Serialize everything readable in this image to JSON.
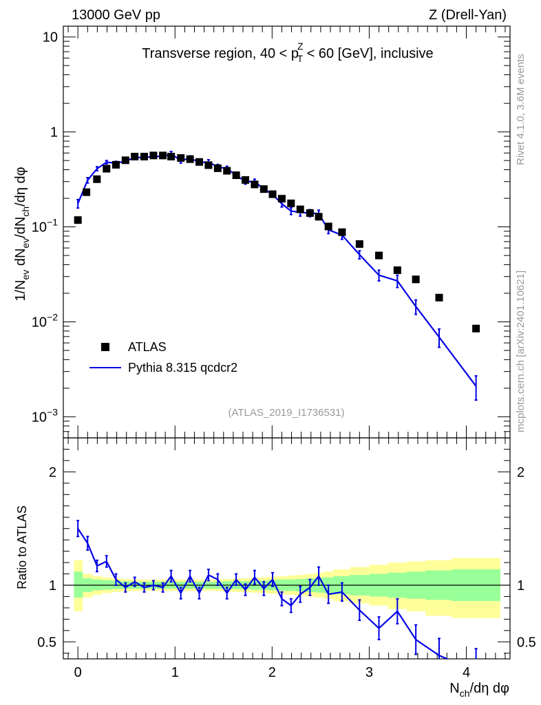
{
  "header": {
    "left": "13000 GeV pp",
    "right": "Z (Drell-Yan)"
  },
  "side": {
    "rivet": "Rivet 4.1.0,  3.6M events",
    "mcplots": "mcplots.cern.ch [arXiv:2401.10621]"
  },
  "chart_data": [
    {
      "type": "scatter",
      "panel": "main",
      "title": "Transverse region, 40 < p_T^Z < 60 [GeV], inclusive",
      "title_parts": {
        "pre": "Transverse region, 40 < p",
        "sup": "Z",
        "sub": "T",
        "post": " < 60 [GeV], inclusive"
      },
      "ylabel": "1/N_ev dN_ev/dN_ch/dη dφ",
      "ylabel_parts": {
        "a": "1/N",
        "a_sub": "ev",
        "b": " dN",
        "b_sub": "ev",
        "c": "/dN",
        "c_sub": "ch",
        "d": "/dη dφ"
      },
      "yscale": "log",
      "ylim": [
        0.0006,
        13
      ],
      "xlim": [
        -0.15,
        4.45
      ],
      "y_ticks": [
        {
          "v": 10,
          "label": "10",
          "sup": ""
        },
        {
          "v": 1,
          "label": "1",
          "sup": ""
        },
        {
          "v": 0.1,
          "label": "10",
          "sup": "−1"
        },
        {
          "v": 0.01,
          "label": "10",
          "sup": "−2"
        },
        {
          "v": 0.001,
          "label": "10",
          "sup": "−3"
        }
      ],
      "source_label": "(ATLAS_2019_I1736531)",
      "legend": [
        {
          "name": "ATLAS",
          "marker": "square",
          "color": "#000000"
        },
        {
          "name": "Pythia 8.315 qcdcr2",
          "marker": "line",
          "color": "#0000e6"
        }
      ],
      "series": [
        {
          "name": "ATLAS",
          "color": "#000000",
          "x": [
            0.0,
            0.088,
            0.196,
            0.295,
            0.392,
            0.49,
            0.585,
            0.683,
            0.778,
            0.875,
            0.96,
            1.06,
            1.155,
            1.25,
            1.345,
            1.44,
            1.535,
            1.63,
            1.725,
            1.82,
            1.915,
            2.005,
            2.1,
            2.195,
            2.29,
            2.39,
            2.48,
            2.58,
            2.72,
            2.9,
            3.1,
            3.29,
            3.48,
            3.72,
            4.1
          ],
          "y": [
            0.118,
            0.232,
            0.318,
            0.41,
            0.451,
            0.503,
            0.55,
            0.55,
            0.565,
            0.565,
            0.55,
            0.532,
            0.517,
            0.483,
            0.447,
            0.415,
            0.39,
            0.35,
            0.312,
            0.28,
            0.25,
            0.221,
            0.198,
            0.177,
            0.153,
            0.14,
            0.128,
            0.101,
            0.088,
            0.066,
            0.05,
            0.035,
            0.028,
            0.018,
            0.0085
          ]
        },
        {
          "name": "Pythia 8.315 qcdcr2",
          "color": "#0000e6",
          "x": [
            0.0,
            0.1,
            0.197,
            0.295,
            0.392,
            0.49,
            0.585,
            0.683,
            0.778,
            0.875,
            0.96,
            1.06,
            1.155,
            1.25,
            1.345,
            1.44,
            1.535,
            1.63,
            1.725,
            1.82,
            1.915,
            2.005,
            2.1,
            2.195,
            2.29,
            2.39,
            2.48,
            2.58,
            2.72,
            2.9,
            3.1,
            3.29,
            3.48,
            3.72,
            4.1
          ],
          "y": [
            0.176,
            0.31,
            0.41,
            0.48,
            0.47,
            0.49,
            0.54,
            0.535,
            0.555,
            0.55,
            0.588,
            0.5,
            0.53,
            0.48,
            0.48,
            0.43,
            0.41,
            0.35,
            0.3,
            0.3,
            0.25,
            0.22,
            0.175,
            0.147,
            0.142,
            0.14,
            0.138,
            0.093,
            0.082,
            0.051,
            0.031,
            0.027,
            0.0145,
            0.0069,
            0.0021
          ],
          "yerr": [
            0.018,
            0.02,
            0.02,
            0.02,
            0.02,
            0.02,
            0.02,
            0.02,
            0.025,
            0.025,
            0.035,
            0.03,
            0.03,
            0.03,
            0.03,
            0.025,
            0.025,
            0.02,
            0.018,
            0.018,
            0.015,
            0.015,
            0.013,
            0.012,
            0.012,
            0.012,
            0.012,
            0.008,
            0.008,
            0.005,
            0.004,
            0.004,
            0.0025,
            0.0015,
            0.0006
          ]
        }
      ]
    },
    {
      "type": "line",
      "panel": "ratio",
      "ylabel": "Ratio to ATLAS",
      "xlabel": "N_ch/dη dφ",
      "xlabel_parts": {
        "a": "N",
        "a_sub": "ch",
        "b": "/dη dφ"
      },
      "ylim": [
        0.35,
        2.3
      ],
      "xlim": [
        -0.15,
        4.45
      ],
      "y_ticks": [
        0.5,
        1,
        2
      ],
      "y_tick_labels": [
        "0.5",
        "1",
        "2"
      ],
      "x_ticks": [
        0,
        1,
        2,
        3,
        4
      ],
      "x_tick_labels": [
        "0",
        "1",
        "2",
        "3",
        "4"
      ],
      "bands": {
        "edges": [
          -0.04,
          0.05,
          0.15,
          0.245,
          0.345,
          0.44,
          0.54,
          0.635,
          0.73,
          0.825,
          0.92,
          1.01,
          1.11,
          1.205,
          1.3,
          1.395,
          1.49,
          1.585,
          1.68,
          1.775,
          1.87,
          1.96,
          2.05,
          2.15,
          2.24,
          2.34,
          2.44,
          2.53,
          2.63,
          2.8,
          3.0,
          3.19,
          3.39,
          3.58,
          3.85,
          4.35
        ],
        "green_hi": [
          1.12,
          1.06,
          1.05,
          1.045,
          1.04,
          1.035,
          1.03,
          1.03,
          1.03,
          1.03,
          1.03,
          1.03,
          1.03,
          1.03,
          1.03,
          1.03,
          1.035,
          1.035,
          1.035,
          1.04,
          1.04,
          1.045,
          1.05,
          1.05,
          1.055,
          1.06,
          1.065,
          1.07,
          1.08,
          1.09,
          1.1,
          1.11,
          1.12,
          1.13,
          1.14
        ],
        "green_lo": [
          0.89,
          0.94,
          0.955,
          0.96,
          0.965,
          0.97,
          0.97,
          0.97,
          0.97,
          0.97,
          0.97,
          0.97,
          0.97,
          0.97,
          0.97,
          0.97,
          0.965,
          0.965,
          0.965,
          0.96,
          0.96,
          0.955,
          0.95,
          0.95,
          0.945,
          0.94,
          0.935,
          0.93,
          0.92,
          0.91,
          0.9,
          0.89,
          0.88,
          0.87,
          0.86
        ],
        "yellow_hi": [
          1.22,
          1.1,
          1.08,
          1.07,
          1.06,
          1.055,
          1.05,
          1.05,
          1.05,
          1.05,
          1.05,
          1.05,
          1.05,
          1.05,
          1.05,
          1.05,
          1.055,
          1.06,
          1.06,
          1.065,
          1.07,
          1.075,
          1.08,
          1.085,
          1.09,
          1.1,
          1.11,
          1.12,
          1.14,
          1.16,
          1.18,
          1.2,
          1.21,
          1.22,
          1.24
        ],
        "yellow_lo": [
          0.77,
          0.89,
          0.915,
          0.93,
          0.94,
          0.945,
          0.95,
          0.95,
          0.95,
          0.95,
          0.95,
          0.95,
          0.95,
          0.95,
          0.95,
          0.95,
          0.945,
          0.94,
          0.94,
          0.935,
          0.93,
          0.925,
          0.92,
          0.915,
          0.91,
          0.9,
          0.89,
          0.88,
          0.86,
          0.84,
          0.82,
          0.79,
          0.77,
          0.73,
          0.71
        ]
      },
      "series": [
        {
          "name": "Pythia 8.315 qcdcr2 / ATLAS",
          "color": "#0000e6",
          "x": [
            0.0,
            0.1,
            0.197,
            0.295,
            0.392,
            0.49,
            0.585,
            0.683,
            0.778,
            0.875,
            0.96,
            1.06,
            1.155,
            1.25,
            1.345,
            1.44,
            1.535,
            1.63,
            1.725,
            1.82,
            1.915,
            2.005,
            2.1,
            2.195,
            2.29,
            2.39,
            2.48,
            2.58,
            2.72,
            2.9,
            3.1,
            3.29,
            3.48,
            3.72,
            4.1
          ],
          "y": [
            1.5,
            1.37,
            1.17,
            1.21,
            1.05,
            0.98,
            1.03,
            0.98,
            1.0,
            0.98,
            1.08,
            0.93,
            1.08,
            0.93,
            1.09,
            1.05,
            0.93,
            1.05,
            0.96,
            1.07,
            0.97,
            1.05,
            0.88,
            0.82,
            0.92,
            0.98,
            1.08,
            0.92,
            0.94,
            0.78,
            0.62,
            0.77,
            0.52,
            0.38,
            0.24
          ],
          "yerr": [
            0.07,
            0.06,
            0.05,
            0.05,
            0.05,
            0.04,
            0.04,
            0.04,
            0.04,
            0.04,
            0.05,
            0.05,
            0.05,
            0.05,
            0.05,
            0.05,
            0.05,
            0.05,
            0.05,
            0.06,
            0.06,
            0.06,
            0.06,
            0.06,
            0.07,
            0.07,
            0.08,
            0.08,
            0.08,
            0.09,
            0.1,
            0.11,
            0.13,
            0.15,
            0.2
          ]
        }
      ]
    }
  ]
}
